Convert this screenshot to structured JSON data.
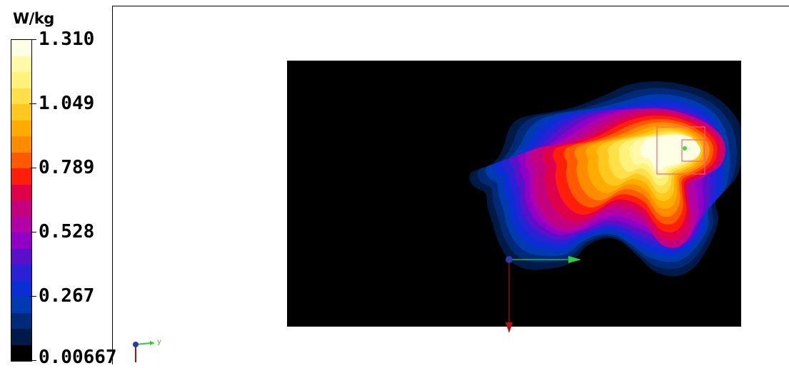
{
  "chart_data": {
    "type": "heatmap",
    "colorbar": {
      "unit": "W/kg",
      "min": 0.00667,
      "max": 1.31,
      "tick_labels": [
        "1.310",
        "1.049",
        "0.789",
        "0.528",
        "0.267",
        "0.00667"
      ],
      "tick_values": [
        1.31,
        1.049,
        0.789,
        0.528,
        0.267,
        0.00667
      ],
      "color_levels_top_to_bottom": [
        "#ffffe6",
        "#fff9a8",
        "#fff27a",
        "#ffe04a",
        "#ffc81e",
        "#ffab00",
        "#ff8c00",
        "#ff5a00",
        "#ff1e0a",
        "#e0004a",
        "#c4007e",
        "#b100a8",
        "#8f00c4",
        "#5a10c8",
        "#2a20d6",
        "#0a2ed4",
        "#003ab0",
        "#002a78",
        "#001a48",
        "#000000"
      ]
    },
    "field": {
      "background": "#000000",
      "hotspot_location": "upper-right",
      "peak_marker_color": "#33dd44",
      "box_color": "#ff6070"
    },
    "axes_triad": {
      "y_axis_color": "#33cc33",
      "x_axis_color": "#b01010",
      "origin_color": "#2a3aa8",
      "label": "y"
    }
  }
}
